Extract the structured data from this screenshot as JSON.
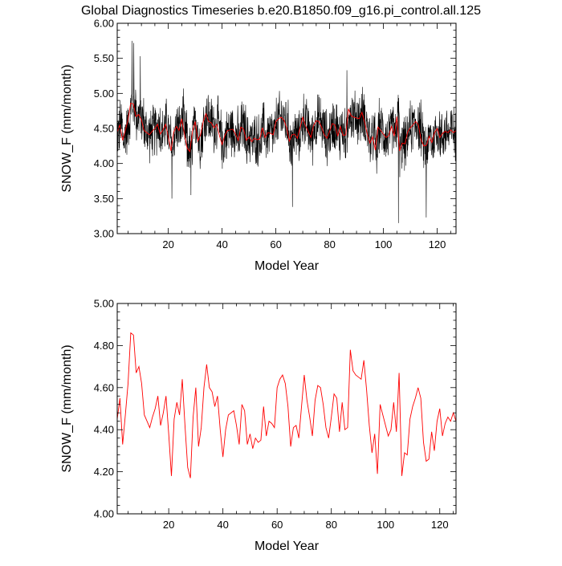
{
  "title": "Global Diagnostics Timeseries b.e20.B1850.f09_g16.pi_control.all.125",
  "chart_data": [
    {
      "type": "line",
      "xlabel": "Model Year",
      "ylabel": "SNOW_F (mm/month)",
      "xlim": [
        1,
        127
      ],
      "ylim": [
        3.0,
        6.0
      ],
      "yticks": [
        "3.00",
        "3.50",
        "4.00",
        "4.50",
        "5.00",
        "5.50",
        "6.00"
      ],
      "xticks": [
        "20",
        "40",
        "60",
        "80",
        "100",
        "120"
      ],
      "grid": false,
      "series": [
        {
          "color": "#000000",
          "resolution": "monthly",
          "annual_baseline": [
            4.45,
            4.55,
            4.33,
            4.47,
            4.62,
            4.86,
            4.85,
            4.67,
            4.7,
            4.62,
            4.47,
            4.44,
            4.41,
            4.46,
            4.5,
            4.56,
            4.42,
            4.48,
            4.56,
            4.38,
            4.18,
            4.45,
            4.53,
            4.47,
            4.64,
            4.42,
            4.22,
            4.17,
            4.46,
            4.6,
            4.32,
            4.41,
            4.6,
            4.71,
            4.6,
            4.58,
            4.51,
            4.56,
            4.4,
            4.27,
            4.4,
            4.47,
            4.48,
            4.49,
            4.42,
            4.33,
            4.52,
            4.49,
            4.33,
            4.38,
            4.31,
            4.36,
            4.34,
            4.35,
            4.51,
            4.37,
            4.44,
            4.43,
            4.41,
            4.6,
            4.64,
            4.66,
            4.62,
            4.51,
            4.32,
            4.41,
            4.42,
            4.36,
            4.51,
            4.66,
            4.54,
            4.46,
            4.37,
            4.54,
            4.61,
            4.6,
            4.52,
            4.41,
            4.36,
            4.46,
            4.57,
            4.55,
            4.39,
            4.53,
            4.4,
            4.41,
            4.78,
            4.68,
            4.66,
            4.65,
            4.64,
            4.73,
            4.59,
            4.42,
            4.29,
            4.38,
            4.19,
            4.52,
            4.47,
            4.42,
            4.37,
            4.4,
            4.53,
            4.39,
            4.67,
            4.18,
            4.29,
            4.28,
            4.45,
            4.51,
            4.55,
            4.6,
            4.55,
            4.34,
            4.25,
            4.26,
            4.39,
            4.3,
            4.44,
            4.5,
            4.37,
            4.43,
            4.46,
            4.44,
            4.48,
            4.44,
            4.47
          ],
          "monthly_spread": 0.32,
          "extremes": [
            {
              "x": 6.5,
              "y": 5.75
            },
            {
              "x": 7.2,
              "y": 5.72
            },
            {
              "x": 9.6,
              "y": 5.53
            },
            {
              "x": 21.3,
              "y": 3.5
            },
            {
              "x": 28.4,
              "y": 3.55
            },
            {
              "x": 66.2,
              "y": 3.38
            },
            {
              "x": 86.4,
              "y": 5.33
            },
            {
              "x": 105.6,
              "y": 3.15
            },
            {
              "x": 115.9,
              "y": 3.23
            }
          ]
        },
        {
          "color": "#ff0000",
          "resolution": "annual",
          "ref": "annual"
        }
      ]
    },
    {
      "type": "line",
      "xlabel": "Model Year",
      "ylabel": "SNOW_F (mm/month)",
      "xlim": [
        1,
        126
      ],
      "ylim": [
        4.0,
        5.0
      ],
      "yticks": [
        "4.00",
        "4.20",
        "4.40",
        "4.60",
        "4.80",
        "5.00"
      ],
      "xticks": [
        "20",
        "40",
        "60",
        "80",
        "100",
        "120"
      ],
      "grid": false,
      "series": [
        {
          "color": "#ff0000",
          "resolution": "annual",
          "ref": "annual"
        }
      ]
    }
  ]
}
